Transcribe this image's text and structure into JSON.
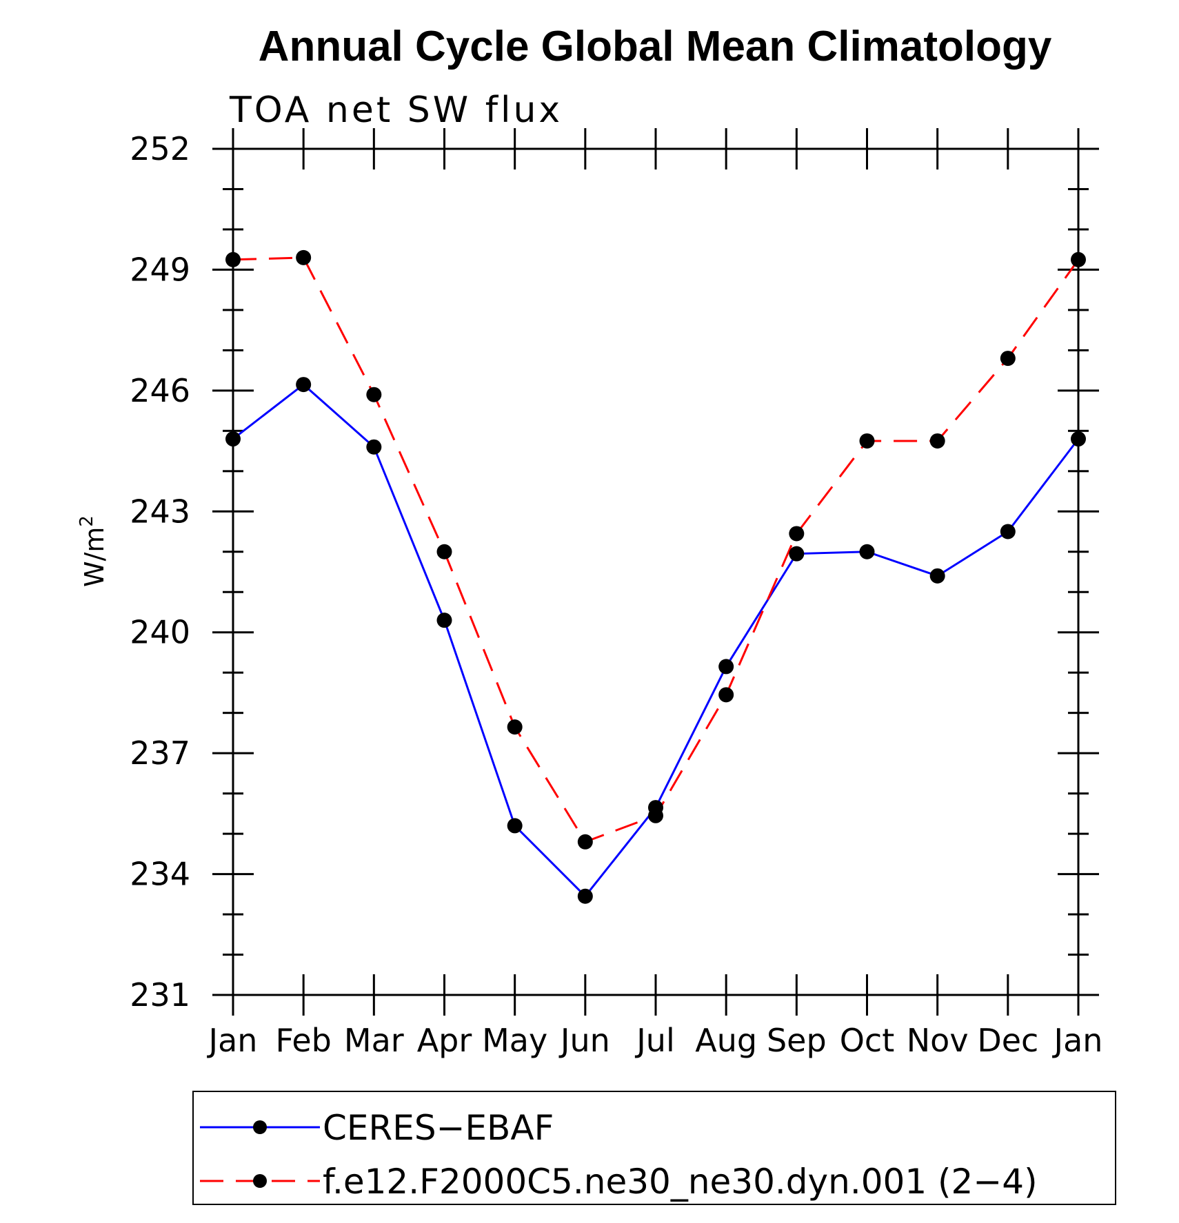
{
  "chart_data": {
    "type": "line",
    "title": "Annual Cycle Global Mean Climatology",
    "subtitle": "TOA net SW flux",
    "ylabel": "W/m",
    "ylabel_superscript": "2",
    "xlabel": "",
    "categories": [
      "Jan",
      "Feb",
      "Mar",
      "Apr",
      "May",
      "Jun",
      "Jul",
      "Aug",
      "Sep",
      "Oct",
      "Nov",
      "Dec",
      "Jan"
    ],
    "ylim": [
      231,
      252
    ],
    "yticks": [
      "231",
      "234",
      "237",
      "240",
      "243",
      "246",
      "249",
      "252"
    ],
    "legend_placement": "bottom",
    "grid": false,
    "series": [
      {
        "name": "CERES−EBAF",
        "color": "#0000ff",
        "dash": "solid",
        "values": [
          244.8,
          246.15,
          244.6,
          240.3,
          235.2,
          233.45,
          235.65,
          239.15,
          241.95,
          242.0,
          241.4,
          242.5,
          244.8
        ]
      },
      {
        "name": "f.e12.F2000C5.ne30_ne30.dyn.001 (2−4)",
        "color": "#ff0000",
        "dash": "dashed",
        "values": [
          249.25,
          249.3,
          245.9,
          242.0,
          237.65,
          234.8,
          235.45,
          238.45,
          242.45,
          244.75,
          244.75,
          246.8,
          249.25
        ]
      }
    ]
  }
}
